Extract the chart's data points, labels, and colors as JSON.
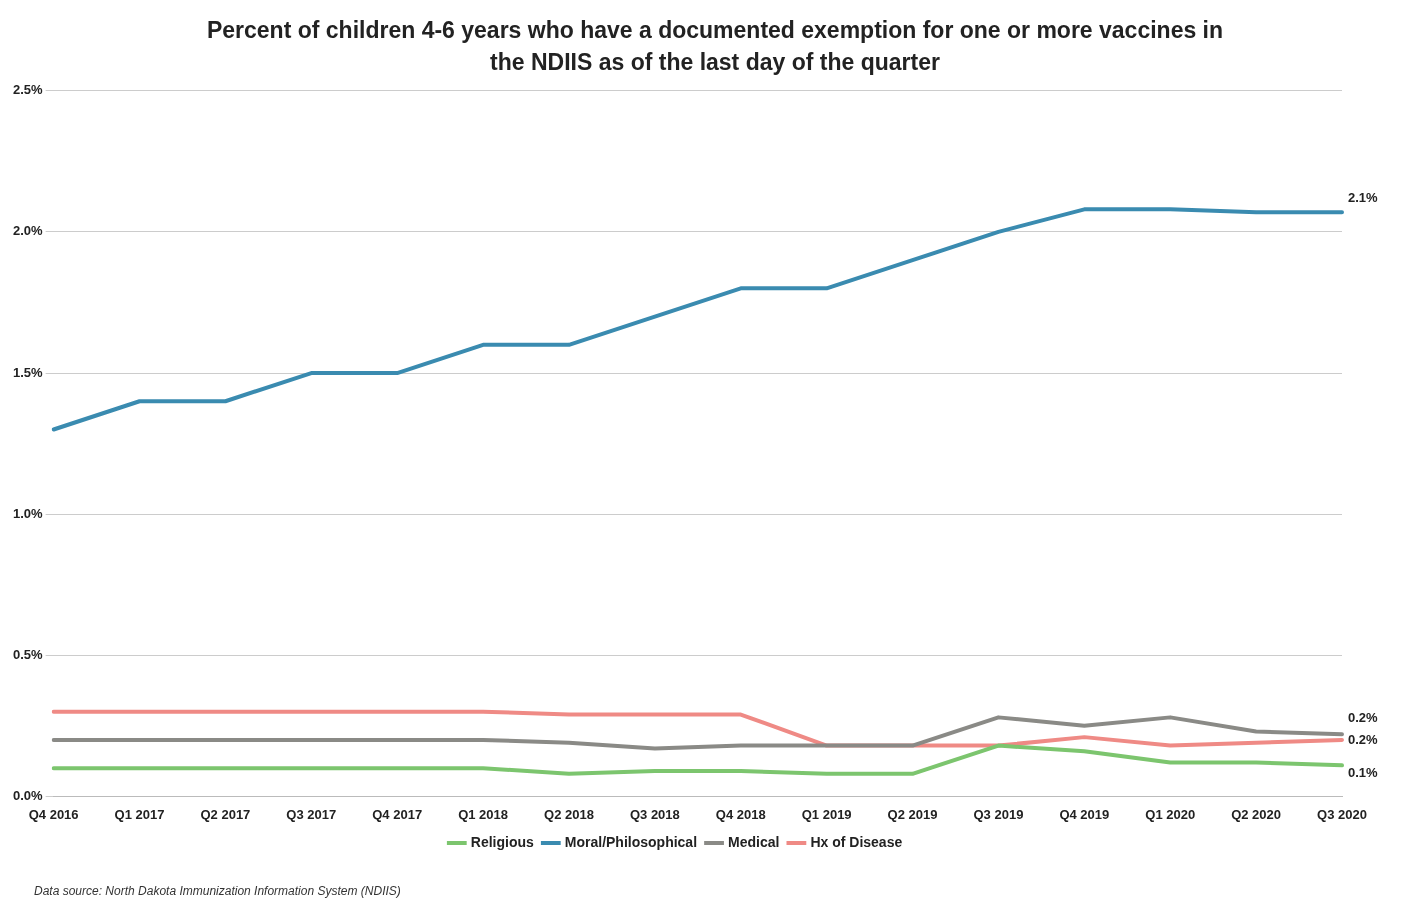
{
  "chart_data": {
    "type": "line",
    "title": "Percent of children 4-6 years who have a documented exemption for one or more vaccines in the NDIIS as of the last day of the quarter",
    "categories": [
      "Q4 2016",
      "Q1 2017",
      "Q2 2017",
      "Q3 2017",
      "Q4 2017",
      "Q1 2018",
      "Q2 2018",
      "Q3 2018",
      "Q4 2018",
      "Q1 2019",
      "Q2 2019",
      "Q3 2019",
      "Q4 2019",
      "Q1 2020",
      "Q2 2020",
      "Q3 2020"
    ],
    "series": [
      {
        "name": "Religious",
        "color": "#7cc56e",
        "values": [
          0.1,
          0.1,
          0.1,
          0.1,
          0.1,
          0.1,
          0.08,
          0.09,
          0.09,
          0.08,
          0.08,
          0.18,
          0.16,
          0.12,
          0.12,
          0.11
        ],
        "value_labels": [
          null,
          null,
          null,
          null,
          null,
          null,
          null,
          null,
          null,
          null,
          null,
          null,
          null,
          null,
          null,
          "0.1%"
        ]
      },
      {
        "name": "Moral/Philosophical",
        "color": "#3a8bb0",
        "values": [
          1.3,
          1.4,
          1.4,
          1.5,
          1.5,
          1.6,
          1.6,
          1.7,
          1.8,
          1.8,
          1.9,
          2.0,
          2.08,
          2.08,
          2.07,
          2.07
        ],
        "value_labels": [
          null,
          null,
          null,
          null,
          null,
          null,
          null,
          null,
          null,
          null,
          null,
          null,
          null,
          null,
          null,
          "2.1%"
        ]
      },
      {
        "name": "Medical",
        "color": "#8a8a86",
        "values": [
          0.2,
          0.2,
          0.2,
          0.2,
          0.2,
          0.2,
          0.19,
          0.17,
          0.18,
          0.18,
          0.18,
          0.28,
          0.25,
          0.28,
          0.23,
          0.22
        ],
        "value_labels": [
          null,
          null,
          null,
          null,
          null,
          null,
          null,
          null,
          null,
          null,
          null,
          null,
          null,
          null,
          null,
          "0.2%"
        ]
      },
      {
        "name": "Hx of Disease",
        "color": "#ef8a85",
        "values": [
          0.3,
          0.3,
          0.3,
          0.3,
          0.3,
          0.3,
          0.29,
          0.29,
          0.29,
          0.18,
          0.18,
          0.18,
          0.21,
          0.18,
          0.19,
          0.2
        ],
        "value_labels": [
          null,
          null,
          null,
          null,
          null,
          null,
          null,
          null,
          null,
          null,
          null,
          null,
          null,
          null,
          null,
          "0.2%"
        ]
      }
    ],
    "ylim": [
      0,
      2.5
    ],
    "yticks": [
      {
        "value": 0,
        "label": "0.0%"
      },
      {
        "value": 0.5,
        "label": "0.5%"
      },
      {
        "value": 1,
        "label": "1.0%"
      },
      {
        "value": 1.5,
        "label": "1.5%"
      },
      {
        "value": 2,
        "label": "2.0%"
      },
      {
        "value": 2.5,
        "label": "2.5%"
      }
    ],
    "grid": "y",
    "legend": "bottom",
    "marker": "none",
    "line_style": "solid",
    "annotations": [
      "Data source: North Dakota Immunization Information System (NDIIS)"
    ]
  }
}
